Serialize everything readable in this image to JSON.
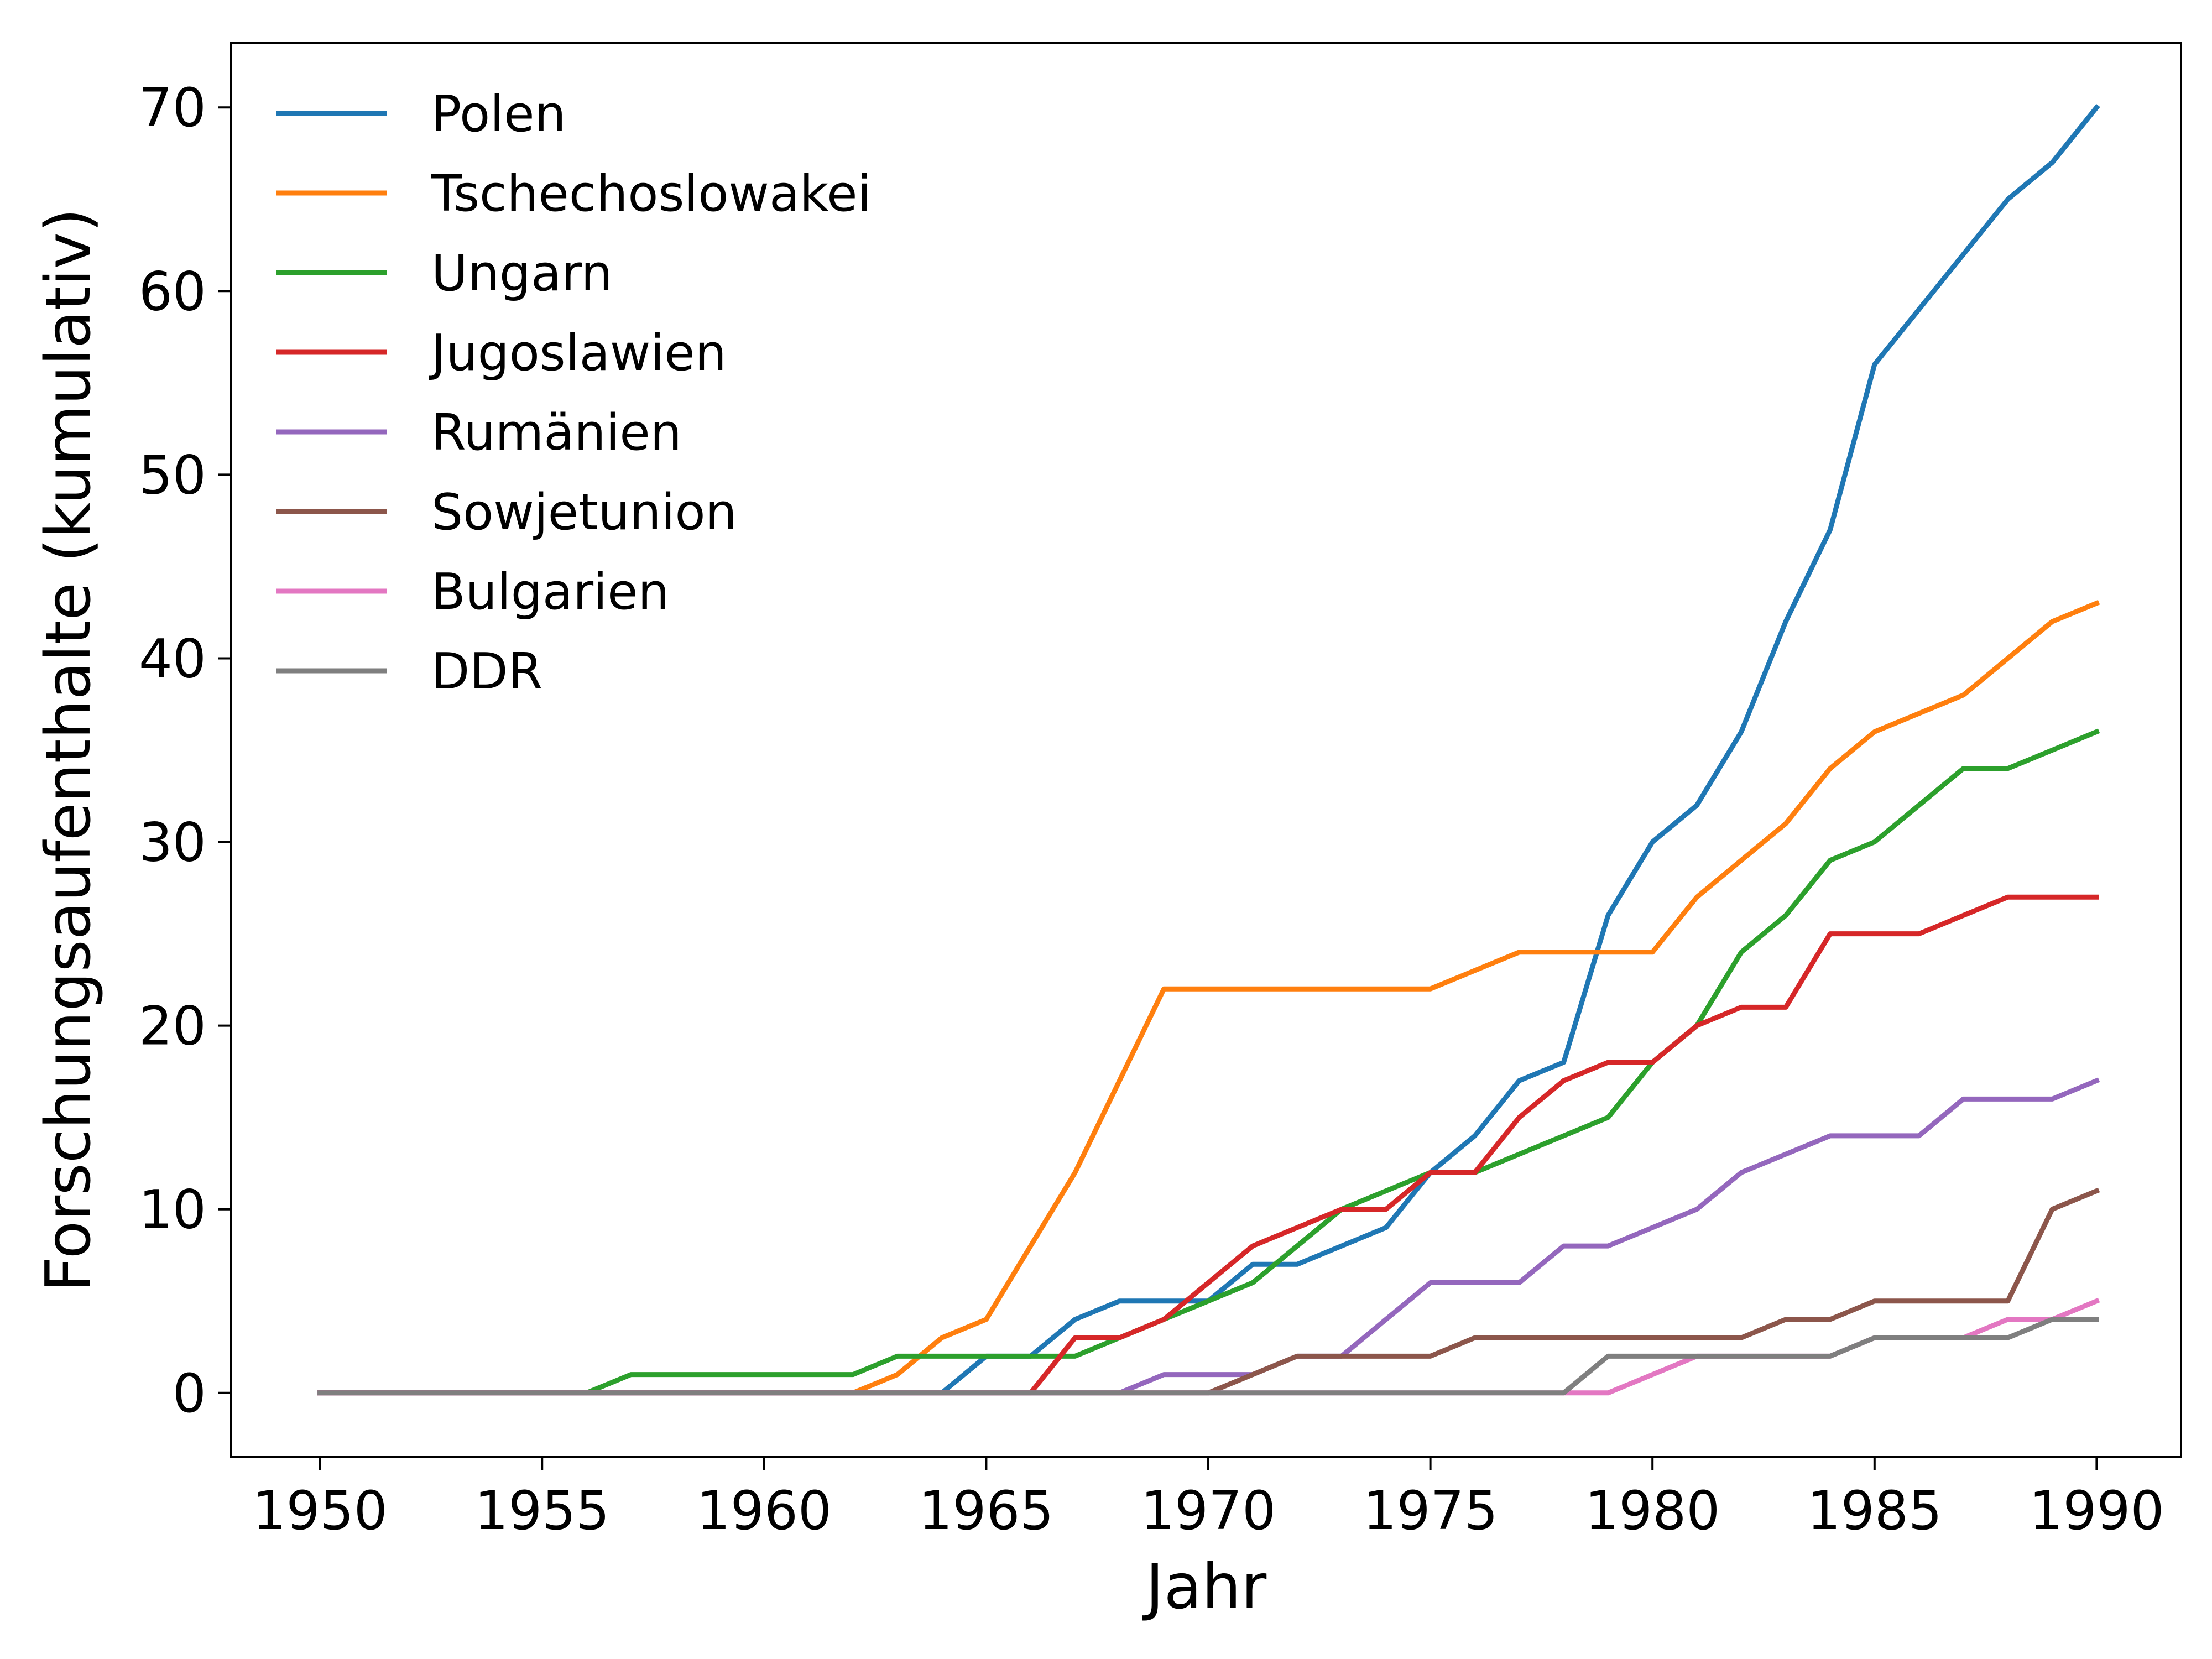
{
  "chart_data": {
    "type": "line",
    "xlabel": "Jahr",
    "ylabel": "Forschungsaufenthalte (kumulativ)",
    "xlim": [
      1948,
      1991.9
    ],
    "ylim": [
      -3.5,
      73.5
    ],
    "xticks": [
      1950,
      1955,
      1960,
      1965,
      1970,
      1975,
      1980,
      1985,
      1990
    ],
    "yticks": [
      0,
      10,
      20,
      30,
      40,
      50,
      60,
      70
    ],
    "grid": false,
    "legend_position": "top-left",
    "x": [
      1950,
      1951,
      1952,
      1953,
      1954,
      1955,
      1956,
      1957,
      1958,
      1959,
      1960,
      1961,
      1962,
      1963,
      1964,
      1965,
      1966,
      1967,
      1968,
      1969,
      1970,
      1971,
      1972,
      1973,
      1974,
      1975,
      1976,
      1977,
      1978,
      1979,
      1980,
      1981,
      1982,
      1983,
      1984,
      1985,
      1986,
      1987,
      1988,
      1989,
      1990
    ],
    "series": [
      {
        "name": "Polen",
        "color": "#1f77b4",
        "values": [
          0,
          0,
          0,
          0,
          0,
          0,
          0,
          0,
          0,
          0,
          0,
          0,
          0,
          0,
          0,
          2,
          2,
          4,
          5,
          5,
          5,
          7,
          7,
          8,
          9,
          12,
          14,
          17,
          18,
          26,
          30,
          32,
          36,
          42,
          47,
          56,
          59,
          62,
          65,
          67,
          70
        ]
      },
      {
        "name": "Tschechoslowakei",
        "color": "#ff7f0e",
        "values": [
          0,
          0,
          0,
          0,
          0,
          0,
          0,
          0,
          0,
          0,
          0,
          0,
          0,
          1,
          3,
          4,
          8,
          12,
          17,
          22,
          22,
          22,
          22,
          22,
          22,
          22,
          23,
          24,
          24,
          24,
          24,
          27,
          29,
          31,
          34,
          36,
          37,
          38,
          40,
          42,
          43
        ]
      },
      {
        "name": "Ungarn",
        "color": "#2ca02c",
        "values": [
          0,
          0,
          0,
          0,
          0,
          0,
          0,
          1,
          1,
          1,
          1,
          1,
          1,
          2,
          2,
          2,
          2,
          2,
          3,
          4,
          5,
          6,
          8,
          10,
          11,
          12,
          12,
          13,
          14,
          15,
          18,
          20,
          24,
          26,
          29,
          30,
          32,
          34,
          34,
          35,
          36
        ]
      },
      {
        "name": "Jugoslawien",
        "color": "#d62728",
        "values": [
          0,
          0,
          0,
          0,
          0,
          0,
          0,
          0,
          0,
          0,
          0,
          0,
          0,
          0,
          0,
          0,
          0,
          3,
          3,
          4,
          6,
          8,
          9,
          10,
          10,
          12,
          12,
          15,
          17,
          18,
          18,
          20,
          21,
          21,
          25,
          25,
          25,
          26,
          27,
          27,
          27
        ]
      },
      {
        "name": "Rumänien",
        "color": "#9467bd",
        "values": [
          0,
          0,
          0,
          0,
          0,
          0,
          0,
          0,
          0,
          0,
          0,
          0,
          0,
          0,
          0,
          0,
          0,
          0,
          0,
          1,
          1,
          1,
          2,
          2,
          4,
          6,
          6,
          6,
          8,
          8,
          9,
          10,
          12,
          13,
          14,
          14,
          14,
          16,
          16,
          16,
          17
        ]
      },
      {
        "name": "Sowjetunion",
        "color": "#8c564b",
        "values": [
          0,
          0,
          0,
          0,
          0,
          0,
          0,
          0,
          0,
          0,
          0,
          0,
          0,
          0,
          0,
          0,
          0,
          0,
          0,
          0,
          0,
          1,
          2,
          2,
          2,
          2,
          3,
          3,
          3,
          3,
          3,
          3,
          3,
          4,
          4,
          5,
          5,
          5,
          5,
          10,
          11
        ]
      },
      {
        "name": "Bulgarien",
        "color": "#e377c2",
        "values": [
          0,
          0,
          0,
          0,
          0,
          0,
          0,
          0,
          0,
          0,
          0,
          0,
          0,
          0,
          0,
          0,
          0,
          0,
          0,
          0,
          0,
          0,
          0,
          0,
          0,
          0,
          0,
          0,
          0,
          0,
          1,
          2,
          2,
          2,
          2,
          3,
          3,
          3,
          4,
          4,
          5
        ]
      },
      {
        "name": "DDR",
        "color": "#7f7f7f",
        "values": [
          0,
          0,
          0,
          0,
          0,
          0,
          0,
          0,
          0,
          0,
          0,
          0,
          0,
          0,
          0,
          0,
          0,
          0,
          0,
          0,
          0,
          0,
          0,
          0,
          0,
          0,
          0,
          0,
          0,
          2,
          2,
          2,
          2,
          2,
          2,
          3,
          3,
          3,
          3,
          4,
          4
        ]
      }
    ]
  }
}
